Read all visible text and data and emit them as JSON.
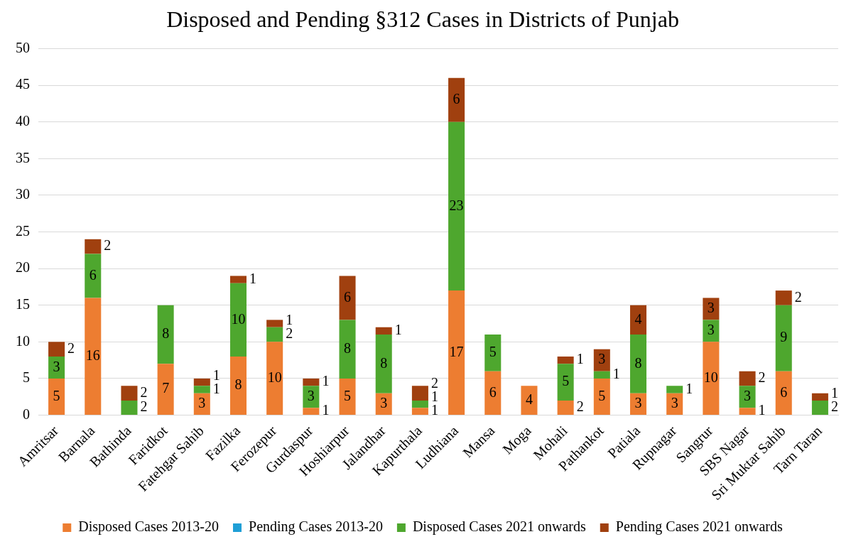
{
  "chart_data": {
    "type": "bar",
    "title": "Disposed and Pending §312 Cases in Districts of Punjab",
    "stacked": true,
    "data_labels": true,
    "grid": "y",
    "legend": "bottom",
    "categories": [
      "Amritsar",
      "Barnala",
      "Bathinda",
      "Faridkot",
      "Fatehgar Sahib",
      "Fazilka",
      "Ferozepur",
      "Gurdaspur",
      "Hoshiarpur",
      "Jalandhar",
      "Kapurthala",
      "Ludhiana",
      "Mansa",
      "Moga",
      "Mohali",
      "Pathankot",
      "Patiala",
      "Rupnagar",
      "Sangrur",
      "SBS Nagar",
      "Sri Muktar Sahib",
      "Tarn Taran"
    ],
    "ylim": [
      0,
      50
    ],
    "yticks": [
      0,
      5,
      10,
      15,
      20,
      25,
      30,
      35,
      40,
      45,
      50
    ],
    "series": [
      {
        "name": "Disposed Cases 2013-20",
        "color": "#ed7d31",
        "values": [
          5,
          16,
          null,
          7,
          3,
          8,
          10,
          1,
          5,
          3,
          1,
          17,
          6,
          4,
          2,
          5,
          3,
          3,
          10,
          1,
          6,
          null
        ]
      },
      {
        "name": "Pending Cases 2013-20",
        "color": "#1f9fd6",
        "values": [
          null,
          null,
          null,
          null,
          null,
          null,
          null,
          null,
          null,
          null,
          null,
          null,
          null,
          null,
          null,
          null,
          null,
          null,
          null,
          null,
          null,
          null
        ]
      },
      {
        "name": "Disposed Cases 2021 onwards",
        "color": "#4ea72e",
        "values": [
          3,
          6,
          2,
          8,
          1,
          10,
          2,
          3,
          8,
          8,
          1,
          23,
          5,
          null,
          5,
          1,
          8,
          1,
          3,
          3,
          9,
          2
        ]
      },
      {
        "name": "Pending Cases 2021 onwards",
        "color": "#a0400f",
        "values": [
          2,
          2,
          2,
          null,
          1,
          1,
          1,
          1,
          6,
          1,
          2,
          6,
          null,
          null,
          1,
          3,
          4,
          null,
          3,
          2,
          2,
          1
        ]
      }
    ]
  }
}
